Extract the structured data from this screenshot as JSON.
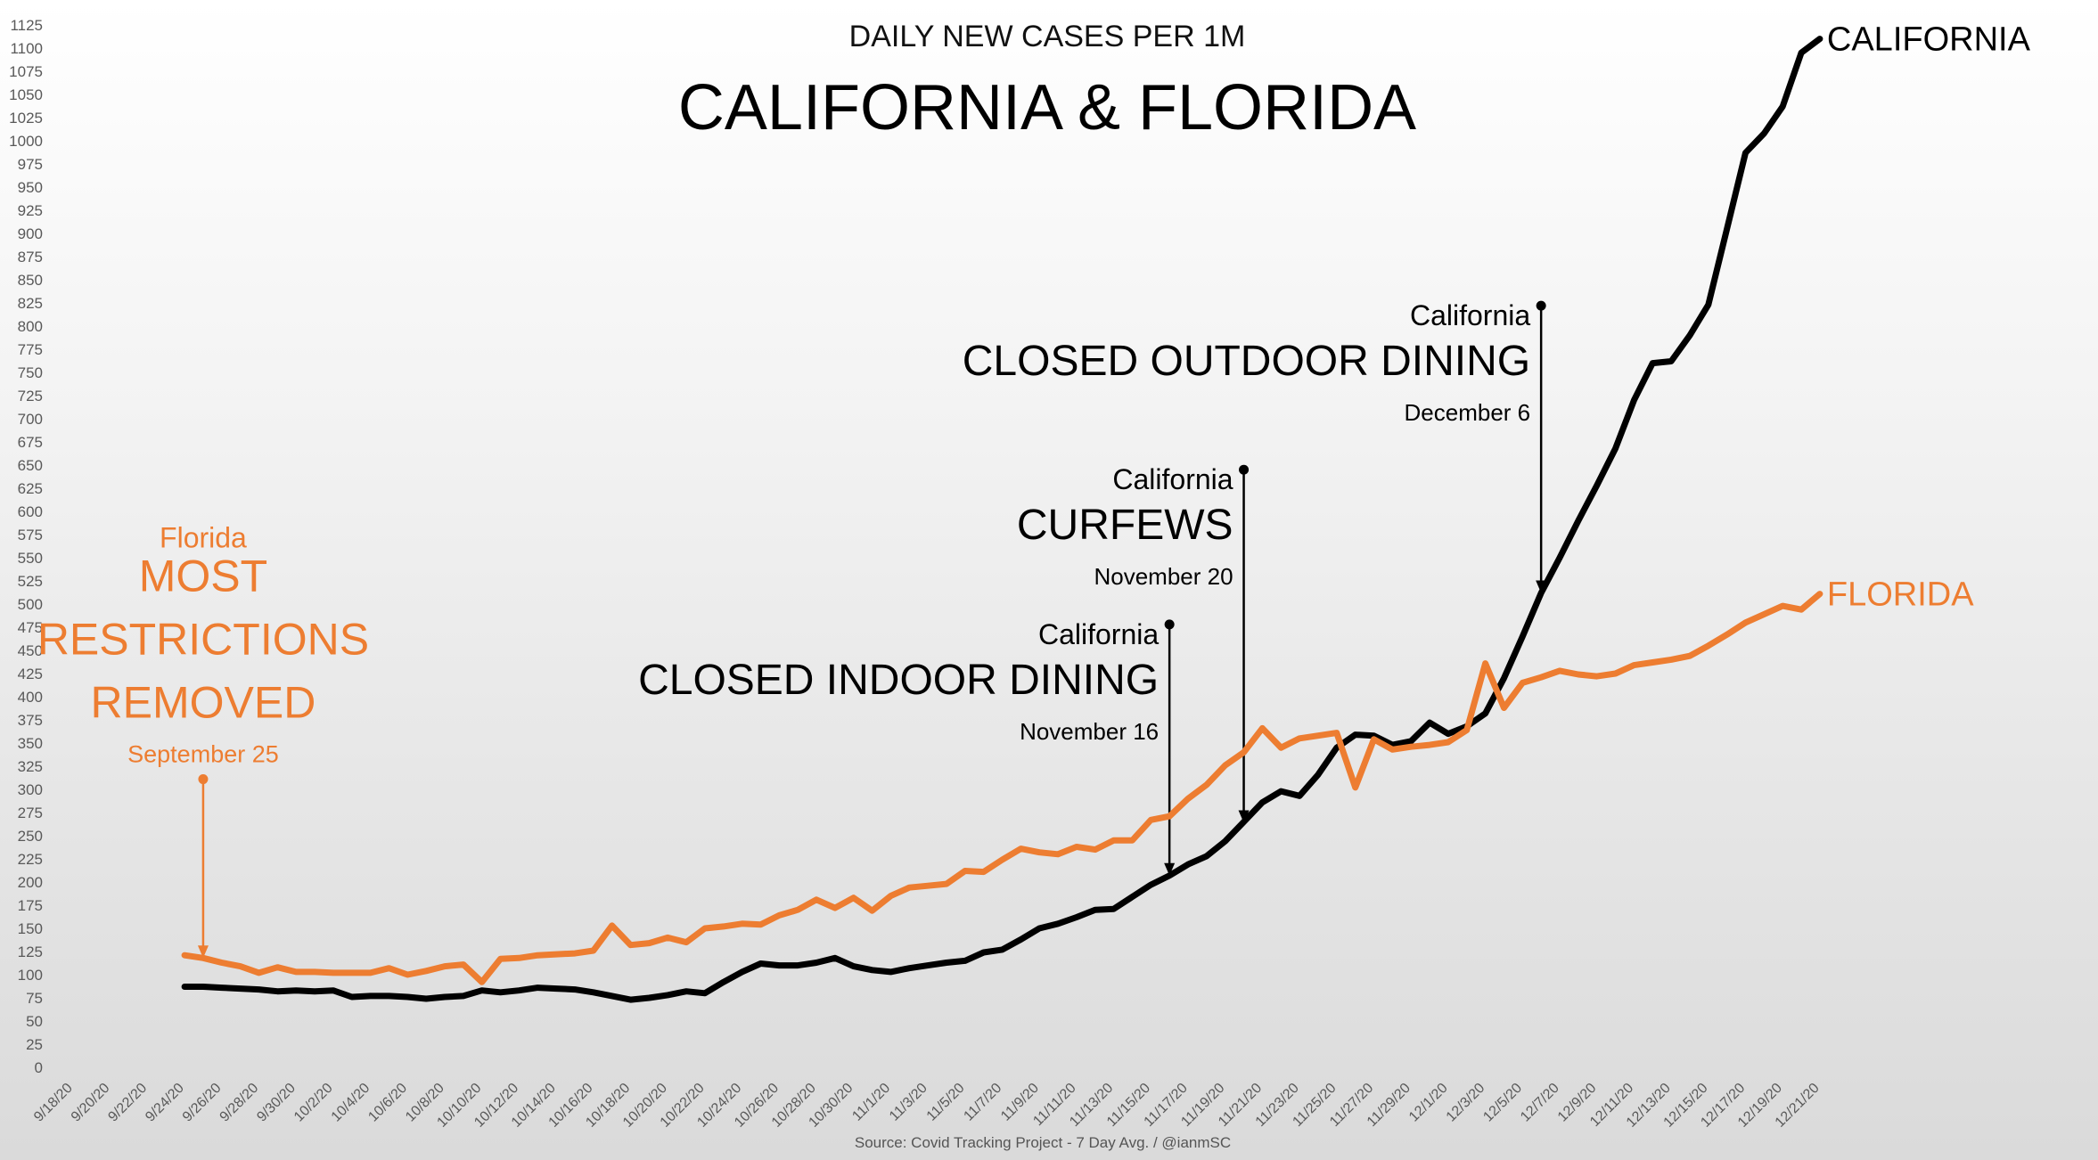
{
  "chart_data": {
    "type": "line",
    "subtitle": "DAILY NEW CASES PER 1M",
    "title": "CALIFORNIA & FLORIDA",
    "source": "Source: Covid Tracking Project - 7 Day Avg. / @ianmSC",
    "ylim": [
      0,
      1125
    ],
    "y_ticks": [
      0,
      25,
      50,
      75,
      100,
      125,
      150,
      175,
      200,
      225,
      250,
      275,
      300,
      325,
      350,
      375,
      400,
      425,
      450,
      475,
      500,
      525,
      550,
      575,
      600,
      625,
      650,
      675,
      700,
      725,
      750,
      775,
      800,
      825,
      850,
      875,
      900,
      925,
      950,
      975,
      1000,
      1025,
      1050,
      1075,
      1100,
      1125
    ],
    "x_start": "9/18/20",
    "x_ticks": [
      "9/18/20",
      "9/20/20",
      "9/22/20",
      "9/24/20",
      "9/26/20",
      "9/28/20",
      "9/30/20",
      "10/2/20",
      "10/4/20",
      "10/6/20",
      "10/8/20",
      "10/10/20",
      "10/12/20",
      "10/14/20",
      "10/16/20",
      "10/18/20",
      "10/20/20",
      "10/22/20",
      "10/24/20",
      "10/26/20",
      "10/28/20",
      "10/30/20",
      "11/1/20",
      "11/3/20",
      "11/5/20",
      "11/7/20",
      "11/9/20",
      "11/11/20",
      "11/13/20",
      "11/15/20",
      "11/17/20",
      "11/19/20",
      "11/21/20",
      "11/23/20",
      "11/25/20",
      "11/27/20",
      "11/29/20",
      "12/1/20",
      "12/3/20",
      "12/5/20",
      "12/7/20",
      "12/9/20",
      "12/11/20",
      "12/13/20",
      "12/15/20",
      "12/17/20",
      "12/19/20",
      "12/21/20"
    ],
    "series": [
      {
        "name": "CALIFORNIA",
        "color": "#000000",
        "x": [
          "9/24/20",
          "9/25/20",
          "9/26/20",
          "9/27/20",
          "9/28/20",
          "9/29/20",
          "9/30/20",
          "10/1/20",
          "10/2/20",
          "10/3/20",
          "10/4/20",
          "10/5/20",
          "10/6/20",
          "10/7/20",
          "10/8/20",
          "10/9/20",
          "10/10/20",
          "10/11/20",
          "10/12/20",
          "10/13/20",
          "10/14/20",
          "10/15/20",
          "10/16/20",
          "10/17/20",
          "10/18/20",
          "10/19/20",
          "10/20/20",
          "10/21/20",
          "10/22/20",
          "10/23/20",
          "10/24/20",
          "10/25/20",
          "10/26/20",
          "10/27/20",
          "10/28/20",
          "10/29/20",
          "10/30/20",
          "10/31/20",
          "11/1/20",
          "11/2/20",
          "11/3/20",
          "11/4/20",
          "11/5/20",
          "11/6/20",
          "11/7/20",
          "11/8/20",
          "11/9/20",
          "11/10/20",
          "11/11/20",
          "11/12/20",
          "11/13/20",
          "11/14/20",
          "11/15/20",
          "11/16/20",
          "11/17/20",
          "11/18/20",
          "11/19/20",
          "11/20/20",
          "11/21/20",
          "11/22/20",
          "11/23/20",
          "11/24/20",
          "11/25/20",
          "11/26/20",
          "11/27/20",
          "11/28/20",
          "11/29/20",
          "11/30/20",
          "12/1/20",
          "12/2/20",
          "12/3/20",
          "12/4/20",
          "12/5/20",
          "12/6/20",
          "12/7/20",
          "12/8/20",
          "12/9/20",
          "12/10/20",
          "12/11/20",
          "12/12/20",
          "12/13/20",
          "12/14/20",
          "12/15/20",
          "12/16/20",
          "12/17/20",
          "12/18/20",
          "12/19/20",
          "12/20/20",
          "12/21/20"
        ],
        "values": [
          87,
          87,
          86,
          85,
          84,
          82,
          83,
          82,
          83,
          76,
          77,
          77,
          76,
          74,
          76,
          77,
          83,
          81,
          83,
          86,
          85,
          84,
          81,
          77,
          73,
          75,
          78,
          82,
          80,
          92,
          103,
          112,
          110,
          110,
          113,
          118,
          109,
          105,
          103,
          107,
          110,
          113,
          115,
          124,
          127,
          138,
          150,
          155,
          162,
          170,
          171,
          184,
          197,
          207,
          219,
          228,
          244,
          265,
          286,
          298,
          293,
          316,
          345,
          359,
          358,
          348,
          352,
          372,
          360,
          368,
          382,
          420,
          465,
          512,
          550,
          590,
          628,
          668,
          720,
          760,
          762,
          790,
          823,
          905,
          987,
          1008,
          1037,
          1095,
          1110
        ]
      },
      {
        "name": "FLORIDA",
        "color": "#ED7D31",
        "x": [
          "9/24/20",
          "9/25/20",
          "9/26/20",
          "9/27/20",
          "9/28/20",
          "9/29/20",
          "9/30/20",
          "10/1/20",
          "10/2/20",
          "10/3/20",
          "10/4/20",
          "10/5/20",
          "10/6/20",
          "10/7/20",
          "10/8/20",
          "10/9/20",
          "10/10/20",
          "10/11/20",
          "10/12/20",
          "10/13/20",
          "10/14/20",
          "10/15/20",
          "10/16/20",
          "10/17/20",
          "10/18/20",
          "10/19/20",
          "10/20/20",
          "10/21/20",
          "10/22/20",
          "10/23/20",
          "10/24/20",
          "10/25/20",
          "10/26/20",
          "10/27/20",
          "10/28/20",
          "10/29/20",
          "10/30/20",
          "10/31/20",
          "11/1/20",
          "11/2/20",
          "11/3/20",
          "11/4/20",
          "11/5/20",
          "11/6/20",
          "11/7/20",
          "11/8/20",
          "11/9/20",
          "11/10/20",
          "11/11/20",
          "11/12/20",
          "11/13/20",
          "11/14/20",
          "11/15/20",
          "11/16/20",
          "11/17/20",
          "11/18/20",
          "11/19/20",
          "11/20/20",
          "11/21/20",
          "11/22/20",
          "11/23/20",
          "11/24/20",
          "11/25/20",
          "11/26/20",
          "11/27/20",
          "11/28/20",
          "11/29/20",
          "11/30/20",
          "12/1/20",
          "12/2/20",
          "12/3/20",
          "12/4/20",
          "12/5/20",
          "12/6/20",
          "12/7/20",
          "12/8/20",
          "12/9/20",
          "12/10/20",
          "12/11/20",
          "12/12/20",
          "12/13/20",
          "12/14/20",
          "12/15/20",
          "12/16/20",
          "12/17/20",
          "12/18/20",
          "12/19/20",
          "12/20/20",
          "12/21/20"
        ],
        "values": [
          121,
          118,
          113,
          109,
          102,
          108,
          103,
          103,
          102,
          102,
          102,
          107,
          100,
          104,
          109,
          111,
          92,
          117,
          118,
          121,
          122,
          123,
          126,
          153,
          132,
          134,
          140,
          135,
          150,
          152,
          155,
          154,
          164,
          170,
          181,
          172,
          183,
          169,
          185,
          194,
          196,
          198,
          212,
          211,
          224,
          236,
          232,
          230,
          238,
          235,
          245,
          245,
          267,
          271,
          290,
          305,
          326,
          340,
          366,
          345,
          355,
          358,
          361,
          302,
          354,
          343,
          346,
          348,
          351,
          364,
          436,
          388,
          415,
          421,
          428,
          424,
          422,
          425,
          434,
          437,
          440,
          444,
          455,
          467,
          480,
          489,
          498,
          494,
          511
        ]
      }
    ],
    "annotations": [
      {
        "series": "FLORIDA",
        "label_top": "Florida",
        "label_main": [
          "MOST",
          "RESTRICTIONS",
          "REMOVED"
        ],
        "label_date": "September 25",
        "x": "9/25/20",
        "y_from": 311,
        "y_to": 118,
        "color": "#ED7D31"
      },
      {
        "series": "CALIFORNIA",
        "label_top": "California",
        "label_main": [
          "CLOSED INDOOR DINING"
        ],
        "label_date": "November 16",
        "x": "11/16/20",
        "y_from": 478,
        "y_to": 207,
        "color": "#000000"
      },
      {
        "series": "CALIFORNIA",
        "label_top": "California",
        "label_main": [
          "CURFEWS"
        ],
        "label_date": "November 20",
        "x": "11/20/20",
        "y_from": 645,
        "y_to": 264,
        "color": "#000000"
      },
      {
        "series": "CALIFORNIA",
        "label_top": "California",
        "label_main": [
          "CLOSED OUTDOOR DINING"
        ],
        "label_date": "December 6",
        "x": "12/6/20",
        "y_from": 822,
        "y_to": 512,
        "color": "#000000"
      }
    ],
    "grid": false,
    "legend": "line end labels"
  }
}
